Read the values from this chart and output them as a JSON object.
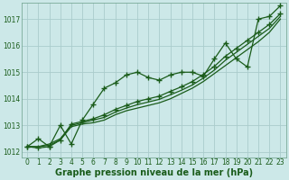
{
  "xlabel": "Graphe pression niveau de la mer (hPa)",
  "bg_color": "#cce8e8",
  "grid_color": "#aacccc",
  "line_color": "#1a5c1a",
  "text_color": "#1a5c1a",
  "xlim": [
    -0.5,
    23.5
  ],
  "ylim": [
    1011.8,
    1017.6
  ],
  "xticks": [
    0,
    1,
    2,
    3,
    4,
    5,
    6,
    7,
    8,
    9,
    10,
    11,
    12,
    13,
    14,
    15,
    16,
    17,
    18,
    19,
    20,
    21,
    22,
    23
  ],
  "yticks": [
    1012,
    1013,
    1014,
    1015,
    1016,
    1017
  ],
  "series": [
    {
      "y": [
        1012.2,
        1012.5,
        1012.2,
        1013.0,
        1012.3,
        1013.2,
        1013.8,
        1014.4,
        1014.6,
        1014.9,
        1015.0,
        1014.8,
        1014.7,
        1014.9,
        1015.0,
        1015.0,
        1014.85,
        1015.5,
        1016.1,
        1015.5,
        1015.2,
        1017.0,
        1017.1,
        1017.5
      ],
      "marker": true,
      "lw": 0.9
    },
    {
      "y": [
        1012.2,
        1012.2,
        1012.25,
        1012.45,
        1012.95,
        1013.05,
        1013.1,
        1013.2,
        1013.4,
        1013.55,
        1013.65,
        1013.75,
        1013.85,
        1014.0,
        1014.2,
        1014.4,
        1014.65,
        1014.95,
        1015.25,
        1015.55,
        1015.85,
        1016.15,
        1016.5,
        1017.0
      ],
      "marker": false,
      "lw": 0.9
    },
    {
      "y": [
        1012.2,
        1012.2,
        1012.3,
        1012.5,
        1013.0,
        1013.1,
        1013.2,
        1013.3,
        1013.5,
        1013.65,
        1013.78,
        1013.88,
        1013.98,
        1014.15,
        1014.32,
        1014.52,
        1014.78,
        1015.08,
        1015.45,
        1015.75,
        1016.05,
        1016.35,
        1016.65,
        1017.1
      ],
      "marker": false,
      "lw": 0.9
    },
    {
      "y": [
        1012.2,
        1012.15,
        1012.2,
        1012.45,
        1013.05,
        1013.15,
        1013.25,
        1013.4,
        1013.6,
        1013.75,
        1013.9,
        1014.0,
        1014.1,
        1014.28,
        1014.45,
        1014.65,
        1014.92,
        1015.22,
        1015.6,
        1015.9,
        1016.2,
        1016.5,
        1016.8,
        1017.2
      ],
      "marker": true,
      "lw": 0.9
    }
  ],
  "marker_style": "+",
  "markersize": 4,
  "xlabel_fontsize": 7,
  "tick_fontsize": 5.5
}
